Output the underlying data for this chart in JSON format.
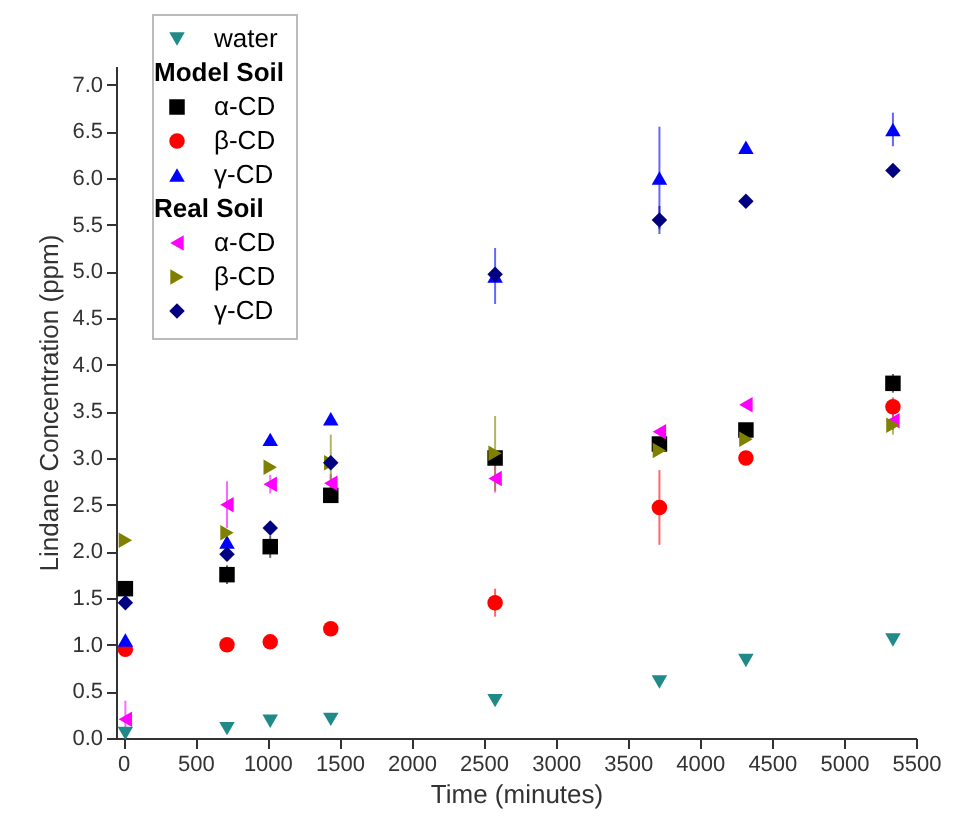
{
  "chart_data": {
    "type": "scatter",
    "xlabel": "Time (minutes)",
    "ylabel": "Lindane Concentration (ppm)",
    "x": [
      15,
      720,
      1020,
      1440,
      2580,
      3720,
      4320,
      5340
    ],
    "xlim": [
      -50,
      5500
    ],
    "xticks": [
      0,
      500,
      1000,
      1500,
      2000,
      2500,
      3000,
      3500,
      4000,
      4500,
      5000,
      5500
    ],
    "ylim": [
      0,
      7.2
    ],
    "yticks": [
      {
        "value": 0,
        "label": "0.0"
      },
      0.5,
      {
        "value": 1,
        "label": "1.0"
      },
      1.5,
      {
        "value": 2,
        "label": "2.0"
      },
      2.5,
      {
        "value": 3,
        "label": "3.0"
      },
      3.5,
      {
        "value": 4,
        "label": "4.0"
      },
      4.5,
      {
        "value": 5,
        "label": "5.0"
      },
      5.5,
      {
        "value": 6,
        "label": "6.0"
      },
      6.5,
      {
        "value": 7,
        "label": "7.0"
      }
    ],
    "legend": "top left",
    "grid": false,
    "annotations": [
      "Model Soil",
      "Real Soil"
    ],
    "series": [
      {
        "name": "water",
        "color": "#1f8a87",
        "marker": "triangle-down",
        "values": [
          0.05,
          0.1,
          0.18,
          0.2,
          0.4,
          0.6,
          0.83,
          1.05
        ]
      },
      {
        "name": "α-CD",
        "color": "#000000",
        "marker": "square",
        "values": [
          1.6,
          1.75,
          2.05,
          2.6,
          3.0,
          3.15,
          3.3,
          3.8
        ],
        "errors": [
          null,
          0.1,
          0.12,
          null,
          null,
          null,
          null,
          0.1
        ]
      },
      {
        "name": "β-CD",
        "color": "#ff0000",
        "marker": "circle",
        "values": [
          0.95,
          1.0,
          1.03,
          1.17,
          1.45,
          2.47,
          3.0,
          3.55
        ],
        "errors": [
          null,
          null,
          null,
          null,
          0.15,
          0.4,
          null,
          0.1
        ]
      },
      {
        "name": "γ-CD",
        "color": "#0000ff",
        "marker": "triangle-up",
        "values": [
          1.05,
          2.1,
          3.2,
          3.42,
          4.95,
          6.0,
          6.33,
          6.52
        ],
        "errors": [
          null,
          null,
          null,
          null,
          0.3,
          0.55,
          null,
          0.18
        ]
      },
      {
        "name": "α-CD",
        "color": "#ff00ff",
        "marker": "triangle-left",
        "values": [
          0.2,
          2.5,
          2.72,
          2.73,
          2.78,
          3.28,
          3.57,
          3.4
        ],
        "errors": [
          0.2,
          0.25,
          0.1,
          0.1,
          0.15,
          null,
          null,
          0.1
        ]
      },
      {
        "name": "β-CD",
        "color": "#808000",
        "marker": "triangle-right",
        "values": [
          2.12,
          2.2,
          2.9,
          2.95,
          3.05,
          3.08,
          3.2,
          3.35
        ],
        "errors": [
          null,
          null,
          null,
          0.3,
          0.4,
          null,
          null,
          0.1
        ]
      },
      {
        "name": "γ-CD",
        "color": "#000080",
        "marker": "diamond",
        "values": [
          1.45,
          1.97,
          2.25,
          2.95,
          4.97,
          5.55,
          5.75,
          6.08
        ],
        "errors": [
          null,
          null,
          null,
          null,
          null,
          0.15,
          null,
          null
        ]
      }
    ]
  }
}
